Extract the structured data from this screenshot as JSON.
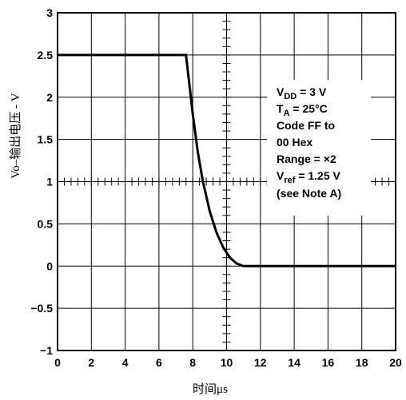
{
  "chart_data": {
    "type": "line",
    "xlabel": "时间μs",
    "ylabel": "Vo–输出电压 - V",
    "xlim": [
      0,
      20
    ],
    "ylim": [
      -1,
      3
    ],
    "xticks": [
      "0",
      "2",
      "4",
      "6",
      "8",
      "10",
      "12",
      "14",
      "16",
      "18",
      "20"
    ],
    "yticks": [
      "3",
      "2.5",
      "2",
      "1.5",
      "1",
      "0.5",
      "0",
      "−0.5",
      "−1"
    ],
    "grid": true,
    "series": [
      {
        "x": [
          0,
          7.6,
          7.8,
          8.0,
          8.3,
          8.6,
          9.0,
          9.4,
          9.8,
          10.2,
          10.6,
          11.0,
          20
        ],
        "y": [
          2.5,
          2.5,
          2.15,
          1.8,
          1.35,
          1.0,
          0.65,
          0.4,
          0.22,
          0.1,
          0.03,
          0.0,
          0.0
        ]
      }
    ],
    "annotations": {
      "vdd_main": "V",
      "vdd_sub": "DD",
      "vdd_rest": " = 3 V",
      "ta_main": "T",
      "ta_sub": "A",
      "ta_rest": " = 25°C",
      "code1": "Code FF to",
      "code2": "00 Hex",
      "range": "Range = ×2",
      "vref_main": "V",
      "vref_sub": "ref",
      "vref_rest": " = 1.25 V",
      "note": "(see Note A)"
    }
  }
}
